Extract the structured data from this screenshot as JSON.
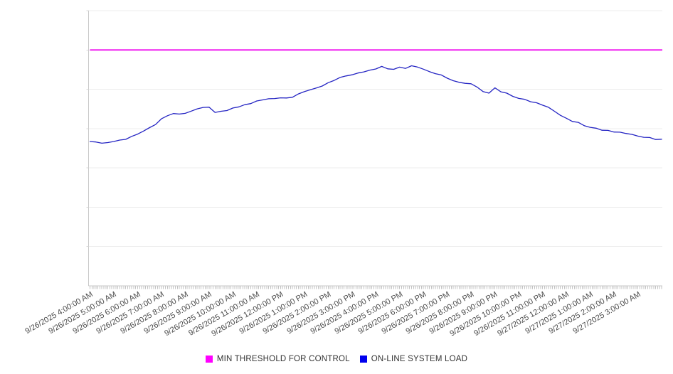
{
  "chart_data": {
    "type": "line",
    "title": "",
    "x_tick_labels": [
      "9/26/2025 4:00:00 AM",
      "9/26/2025 5:00:00 AM",
      "9/26/2025 6:00:00 AM",
      "9/26/2025 7:00:00 AM",
      "9/26/2025 8:00:00 AM",
      "9/26/2025 9:00:00 AM",
      "9/26/2025 10:00:00 AM",
      "9/26/2025 11:00:00 AM",
      "9/26/2025 12:00:00 PM",
      "9/26/2025 1:00:00 PM",
      "9/26/2025 2:00:00 PM",
      "9/26/2025 3:00:00 PM",
      "9/26/2025 4:00:00 PM",
      "9/26/2025 5:00:00 PM",
      "9/26/2025 6:00:00 PM",
      "9/26/2025 7:00:00 PM",
      "9/26/2025 8:00:00 PM",
      "9/26/2025 9:00:00 PM",
      "9/26/2025 10:00:00 PM",
      "9/26/2025 11:00:00 PM",
      "9/27/2025 12:00:00 AM",
      "9/27/2025 1:00:00 AM",
      "9/27/2025 2:00:00 AM",
      "9/27/2025 3:00:00 AM"
    ],
    "x_minor_tick_minutes": 5,
    "x_span_minutes": 1440,
    "y_gridline_count": 7,
    "ylim": [
      0,
      7
    ],
    "y_labels_visible": false,
    "y_unit_note": "y axis has no numeric labels; values expressed in gridline units (1 unit = 1 gridline interval)",
    "grid": true,
    "legend_position": "bottom-center",
    "series": [
      {
        "name": "MIN THRESHOLD FOR CONTROL",
        "kind": "threshold-horizontal-line",
        "value": 6.0,
        "color": "#EE00EE",
        "swatch_color": "#FF00FF"
      },
      {
        "name": "ON-LINE SYSTEM LOAD",
        "kind": "line",
        "color": "#2424C3",
        "swatch_color": "#0000EE",
        "start": "9/26/2025 4:00:00 AM",
        "step_minutes": 15,
        "values": [
          3.67,
          3.66,
          3.64,
          3.64,
          3.68,
          3.7,
          3.73,
          3.79,
          3.86,
          3.95,
          4.02,
          4.11,
          4.24,
          4.33,
          4.37,
          4.37,
          4.4,
          4.44,
          4.51,
          4.53,
          4.55,
          4.4,
          4.44,
          4.47,
          4.52,
          4.56,
          4.6,
          4.64,
          4.69,
          4.73,
          4.77,
          4.76,
          4.79,
          4.77,
          4.8,
          4.87,
          4.94,
          5.0,
          5.03,
          5.09,
          5.16,
          5.23,
          5.29,
          5.34,
          5.38,
          5.41,
          5.45,
          5.48,
          5.52,
          5.57,
          5.52,
          5.52,
          5.56,
          5.54,
          5.59,
          5.57,
          5.5,
          5.45,
          5.41,
          5.36,
          5.29,
          5.21,
          5.18,
          5.14,
          5.14,
          5.07,
          4.94,
          4.91,
          5.03,
          4.94,
          4.89,
          4.82,
          4.78,
          4.74,
          4.69,
          4.65,
          4.6,
          4.53,
          4.44,
          4.35,
          4.26,
          4.19,
          4.15,
          4.08,
          4.02,
          4.01,
          3.97,
          3.95,
          3.92,
          3.9,
          3.88,
          3.84,
          3.81,
          3.79,
          3.77,
          3.73,
          3.73
        ]
      }
    ]
  }
}
